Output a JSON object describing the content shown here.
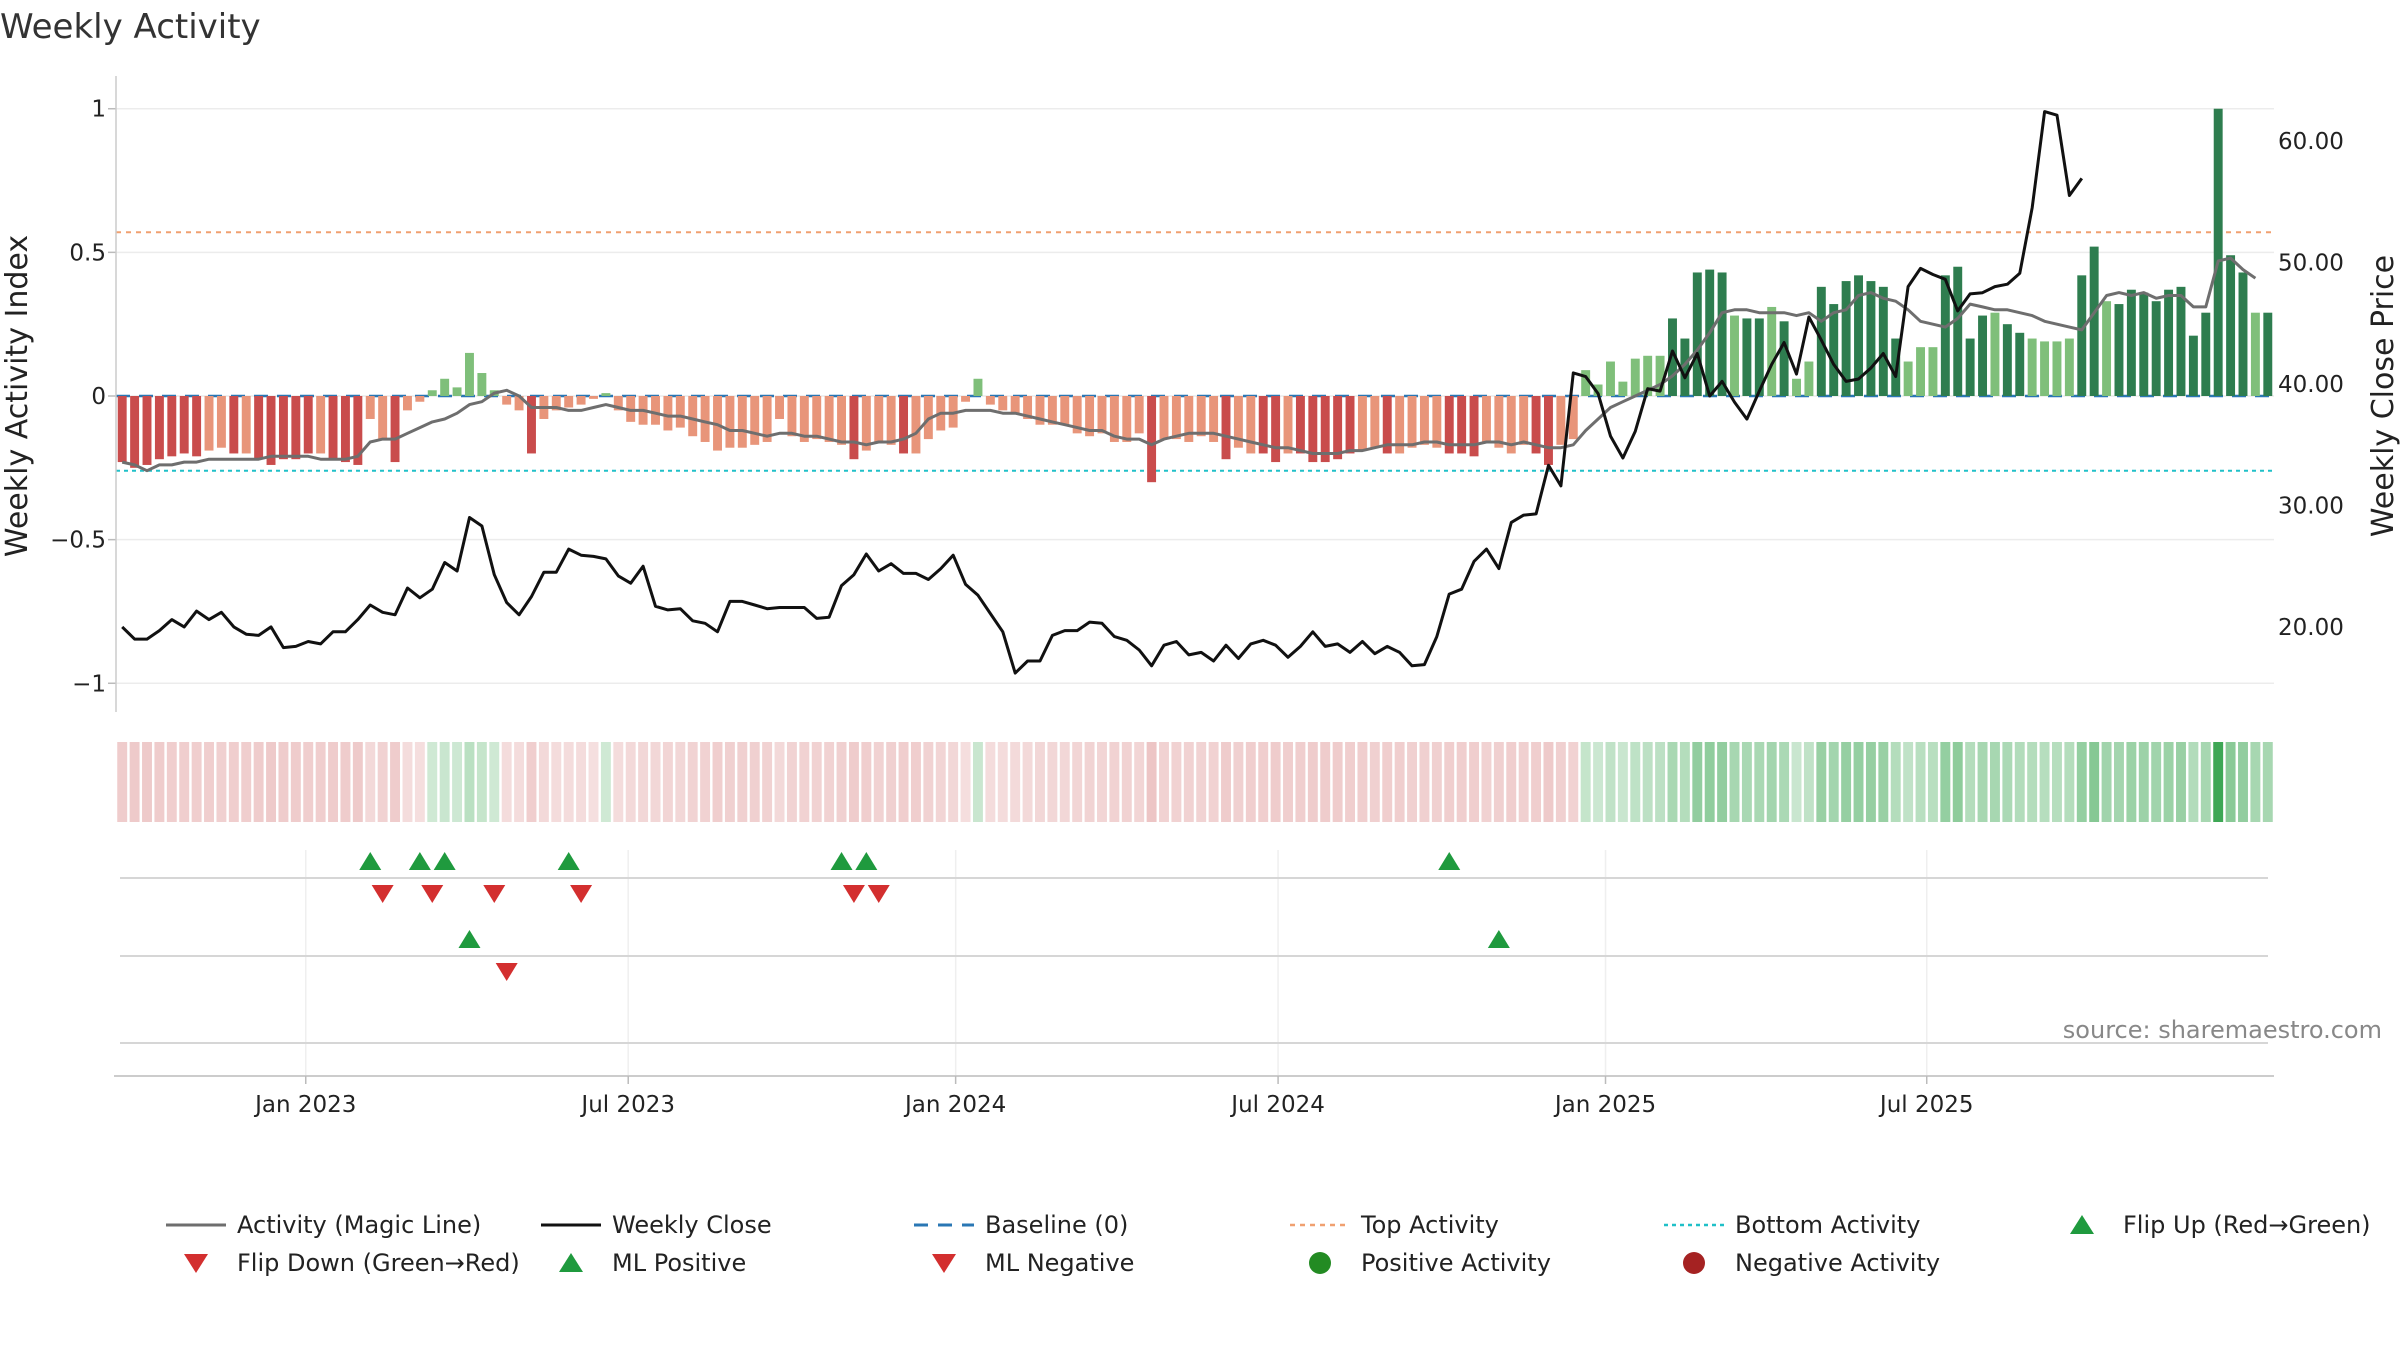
{
  "chart_data": {
    "type": "bar",
    "title": "Weekly Activity",
    "ylabel_left": "Weekly Activity Index",
    "ylabel_right": "Weekly Close Price",
    "source": "source: sharemaestro.com",
    "ylim_left": [
      -1.1,
      1.1
    ],
    "ylim_right": [
      13,
      65
    ],
    "yticks_left": [
      1,
      0.5,
      0,
      -0.5,
      -1
    ],
    "yticks_left_labels": [
      "1",
      "0.5",
      "0",
      "−0.5",
      "−1"
    ],
    "yticks_right": [
      60,
      50,
      40,
      30,
      20
    ],
    "yticks_right_labels": [
      "60.00",
      "50.00",
      "40.00",
      "30.00",
      "20.00"
    ],
    "xticks": [
      {
        "week": 15.3,
        "label": "Jan 2023"
      },
      {
        "week": 41.3,
        "label": "Jul 2023"
      },
      {
        "week": 67.7,
        "label": "Jan 2024"
      },
      {
        "week": 93.7,
        "label": "Jul 2024"
      },
      {
        "week": 120.1,
        "label": "Jan 2025"
      },
      {
        "week": 146.0,
        "label": "Jul 2025"
      }
    ],
    "reference_lines": {
      "top_activity": 0.57,
      "baseline": 0,
      "bottom_activity": -0.26
    },
    "activity_index": [
      -0.23,
      -0.25,
      -0.24,
      -0.22,
      -0.21,
      -0.2,
      -0.21,
      -0.19,
      -0.18,
      -0.2,
      -0.2,
      -0.22,
      -0.24,
      -0.22,
      -0.22,
      -0.2,
      -0.2,
      -0.22,
      -0.23,
      -0.24,
      -0.08,
      -0.15,
      -0.23,
      -0.05,
      -0.02,
      0.02,
      0.06,
      0.03,
      0.15,
      0.08,
      0.02,
      -0.03,
      -0.05,
      -0.2,
      -0.08,
      -0.05,
      -0.04,
      -0.03,
      -0.01,
      0.01,
      -0.05,
      -0.09,
      -0.1,
      -0.1,
      -0.12,
      -0.11,
      -0.14,
      -0.16,
      -0.19,
      -0.18,
      -0.18,
      -0.17,
      -0.16,
      -0.08,
      -0.14,
      -0.16,
      -0.15,
      -0.16,
      -0.17,
      -0.22,
      -0.19,
      -0.16,
      -0.17,
      -0.2,
      -0.2,
      -0.15,
      -0.12,
      -0.11,
      -0.02,
      0.06,
      -0.03,
      -0.05,
      -0.06,
      -0.08,
      -0.1,
      -0.1,
      -0.1,
      -0.13,
      -0.14,
      -0.13,
      -0.16,
      -0.16,
      -0.13,
      -0.3,
      -0.15,
      -0.15,
      -0.16,
      -0.14,
      -0.16,
      -0.22,
      -0.18,
      -0.2,
      -0.2,
      -0.23,
      -0.2,
      -0.2,
      -0.23,
      -0.23,
      -0.22,
      -0.2,
      -0.19,
      -0.18,
      -0.2,
      -0.2,
      -0.18,
      -0.17,
      -0.18,
      -0.2,
      -0.2,
      -0.21,
      -0.16,
      -0.18,
      -0.2,
      -0.17,
      -0.2,
      -0.24,
      -0.17,
      -0.15,
      0.09,
      0.04,
      0.12,
      0.05,
      0.13,
      0.14,
      0.14,
      0.27,
      0.2,
      0.43,
      0.44,
      0.43,
      0.28,
      0.27,
      0.27,
      0.31,
      0.26,
      0.06,
      0.12,
      0.38,
      0.32,
      0.4,
      0.42,
      0.4,
      0.38,
      0.2,
      0.12,
      0.17,
      0.17,
      0.42,
      0.45,
      0.2,
      0.28,
      0.29,
      0.25,
      0.22,
      0.2,
      0.19,
      0.19,
      0.2,
      0.42,
      0.52,
      0.33,
      0.32,
      0.37,
      0.36,
      0.33,
      0.37,
      0.38,
      0.21,
      0.29,
      1.0,
      0.49,
      0.43,
      0.29,
      0.29
    ],
    "magic_line": [
      -0.23,
      -0.24,
      -0.26,
      -0.24,
      -0.24,
      -0.23,
      -0.23,
      -0.22,
      -0.22,
      -0.22,
      -0.22,
      -0.22,
      -0.21,
      -0.21,
      -0.21,
      -0.21,
      -0.22,
      -0.22,
      -0.22,
      -0.21,
      -0.16,
      -0.15,
      -0.15,
      -0.13,
      -0.11,
      -0.09,
      -0.08,
      -0.06,
      -0.03,
      -0.02,
      0.01,
      0.02,
      0.0,
      -0.04,
      -0.04,
      -0.04,
      -0.05,
      -0.05,
      -0.04,
      -0.03,
      -0.04,
      -0.05,
      -0.05,
      -0.06,
      -0.07,
      -0.07,
      -0.08,
      -0.09,
      -0.1,
      -0.12,
      -0.12,
      -0.13,
      -0.14,
      -0.13,
      -0.13,
      -0.14,
      -0.14,
      -0.15,
      -0.16,
      -0.16,
      -0.17,
      -0.16,
      -0.16,
      -0.15,
      -0.13,
      -0.08,
      -0.06,
      -0.06,
      -0.05,
      -0.05,
      -0.05,
      -0.06,
      -0.06,
      -0.07,
      -0.08,
      -0.09,
      -0.1,
      -0.11,
      -0.12,
      -0.12,
      -0.14,
      -0.15,
      -0.15,
      -0.17,
      -0.15,
      -0.14,
      -0.13,
      -0.13,
      -0.13,
      -0.14,
      -0.15,
      -0.16,
      -0.17,
      -0.18,
      -0.18,
      -0.19,
      -0.2,
      -0.2,
      -0.2,
      -0.19,
      -0.19,
      -0.18,
      -0.17,
      -0.17,
      -0.17,
      -0.16,
      -0.16,
      -0.17,
      -0.17,
      -0.17,
      -0.16,
      -0.16,
      -0.17,
      -0.16,
      -0.17,
      -0.18,
      -0.18,
      -0.17,
      -0.12,
      -0.08,
      -0.04,
      -0.02,
      0.0,
      0.02,
      0.04,
      0.07,
      0.11,
      0.16,
      0.22,
      0.29,
      0.3,
      0.3,
      0.29,
      0.29,
      0.29,
      0.28,
      0.29,
      0.26,
      0.29,
      0.3,
      0.35,
      0.36,
      0.34,
      0.33,
      0.3,
      0.26,
      0.25,
      0.24,
      0.27,
      0.32,
      0.31,
      0.3,
      0.3,
      0.29,
      0.28,
      0.26,
      0.25,
      0.24,
      0.23,
      0.29,
      0.35,
      0.36,
      0.35,
      0.36,
      0.34,
      0.35,
      0.35,
      0.31,
      0.31,
      0.47,
      0.48,
      0.44,
      0.41
    ],
    "weekly_close": [
      20,
      19,
      19,
      19.7,
      20.6,
      20,
      21.3,
      20.6,
      21.2,
      20,
      19.4,
      19.3,
      20,
      18.3,
      18.4,
      18.8,
      18.6,
      19.6,
      19.6,
      20.6,
      21.8,
      21.2,
      21,
      23.2,
      22.4,
      23.1,
      25.3,
      24.6,
      29,
      28.3,
      24.3,
      22,
      21,
      22.5,
      24.5,
      24.5,
      26.4,
      25.9,
      25.8,
      25.6,
      24.2,
      23.6,
      25,
      21.7,
      21.4,
      21.5,
      20.5,
      20.3,
      19.6,
      22.1,
      22.1,
      21.8,
      21.5,
      21.6,
      21.6,
      21.6,
      20.7,
      20.8,
      23.4,
      24.3,
      26,
      24.6,
      25.2,
      24.4,
      24.4,
      23.9,
      24.8,
      25.9,
      23.5,
      22.6,
      21.1,
      19.6,
      16.2,
      17.2,
      17.2,
      19.3,
      19.7,
      19.7,
      20.4,
      20.3,
      19.2,
      18.9,
      18.1,
      16.8,
      18.5,
      18.8,
      17.7,
      17.9,
      17.2,
      18.5,
      17.4,
      18.6,
      18.9,
      18.5,
      17.5,
      18.4,
      19.6,
      18.4,
      18.6,
      17.9,
      18.8,
      17.8,
      18.4,
      17.9,
      16.8,
      16.9,
      19.2,
      22.7,
      23.1,
      25.4,
      26.4,
      24.8,
      28.6,
      29.2,
      29.3,
      33.3,
      31.6,
      40.9,
      40.6,
      39.2,
      35.7,
      33.9,
      36.1,
      39.6,
      39.4,
      42.7,
      40.5,
      42.5,
      39,
      40.2,
      38.5,
      37.1,
      39.4,
      41.6,
      43.4,
      40.8,
      45.5,
      43.6,
      41.6,
      40.2,
      40.4,
      41.3,
      42.5,
      40.6,
      48,
      49.5,
      49,
      48.6,
      46,
      47.4,
      47.5,
      48,
      48.2,
      49.1,
      54.5,
      62.4,
      62.1,
      55.5,
      56.9
    ],
    "flip_up_rows": [
      {
        "row": 1,
        "weeks": [
          20,
          24,
          26,
          36,
          58,
          60,
          107
        ]
      },
      {
        "row": 2,
        "weeks": [
          28,
          111
        ]
      }
    ],
    "flip_down_rows": [
      {
        "row": 1,
        "weeks": [
          21,
          25,
          30,
          37,
          59,
          61
        ]
      },
      {
        "row": 2,
        "weeks": [
          31
        ]
      }
    ],
    "legend": [
      {
        "symbol": "magic-line",
        "label": "Activity (Magic Line)"
      },
      {
        "symbol": "weekly-close",
        "label": "Weekly Close"
      },
      {
        "symbol": "baseline",
        "label": "Baseline (0)"
      },
      {
        "symbol": "top-activity",
        "label": "Top Activity"
      },
      {
        "symbol": "bottom-activity",
        "label": "Bottom Activity"
      },
      {
        "symbol": "flip-up",
        "label": "Flip Up (Red→Green)"
      },
      {
        "symbol": "flip-down",
        "label": "Flip Down (Green→Red)"
      },
      {
        "symbol": "ml-positive",
        "label": "ML Positive"
      },
      {
        "symbol": "ml-negative",
        "label": "ML Negative"
      },
      {
        "symbol": "positive-activity",
        "label": "Positive Activity"
      },
      {
        "symbol": "negative-activity",
        "label": "Negative Activity"
      }
    ]
  },
  "colors": {
    "strong_green": "#2e7d4f",
    "light_green": "#7fbf7a",
    "strong_red": "#c94c4c",
    "light_red": "#e8957a",
    "magic_line": "#6e6e6e",
    "close_line": "#111111",
    "baseline": "#2a77b4",
    "top_line": "#f0a070",
    "bottom_line": "#20c0c8",
    "marker_green": "#1f9a3e",
    "marker_red": "#d32f2f",
    "dot_green": "#238b23",
    "dot_red": "#a52222"
  }
}
